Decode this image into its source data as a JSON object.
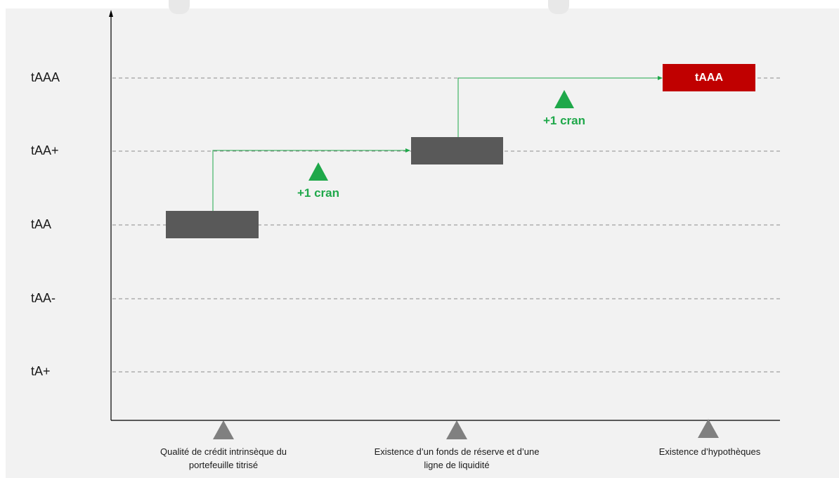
{
  "levels": [
    "tAAA",
    "tAA+",
    "tAA",
    "tAA-",
    "tA+"
  ],
  "steps": [
    {
      "caption_lines": [
        "Qualité de crédit intrinsèque du",
        "portefeuille titrisé"
      ],
      "level": "tAA"
    },
    {
      "caption_lines": [
        "Existence d’un fonds de réserve et d’une",
        "ligne de liquidité"
      ],
      "level": "tAA+"
    },
    {
      "caption_lines": [
        "Existence d’hypothèques"
      ],
      "level": "tAAA",
      "label": "tAAA"
    }
  ],
  "gains": [
    {
      "text": "+1 cran"
    },
    {
      "text": "+1 cran"
    }
  ],
  "colors": {
    "bar_gray": "#595959",
    "final_red": "#c00000",
    "green": "#1fa84a",
    "marker_gray": "#808080",
    "grid": "#8c8c8c"
  }
}
